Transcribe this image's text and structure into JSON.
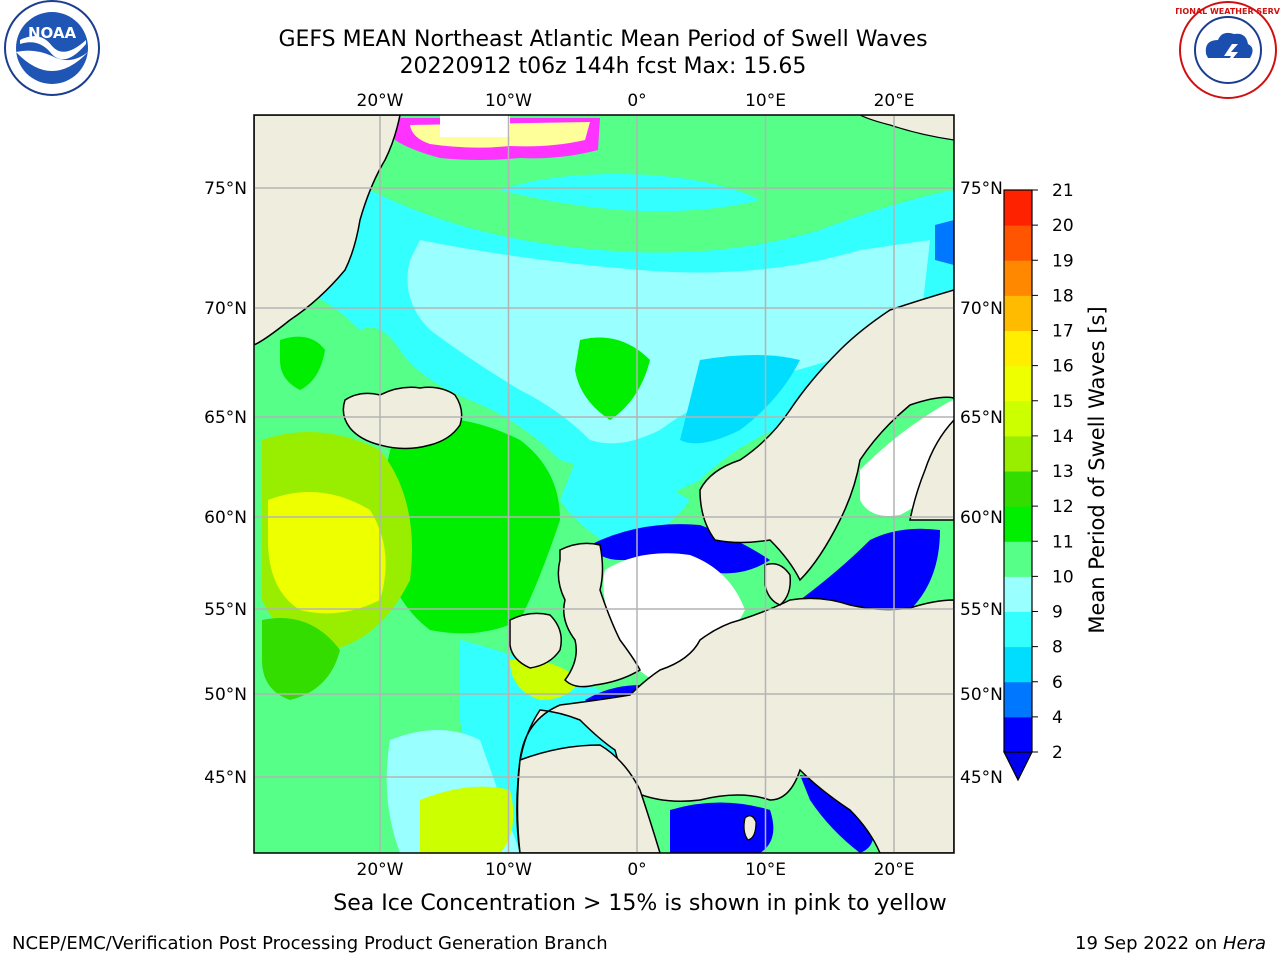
{
  "title": {
    "line1": "GEFS MEAN Northeast Atlantic Mean Period of Swell Waves",
    "line2": "20220912 t06z 144h fcst   Max: 15.65"
  },
  "logos": {
    "left": "NOAA",
    "right": "NATIONAL WEATHER SERVICE"
  },
  "map": {
    "lon_labels": [
      "20°W",
      "10°W",
      "0°",
      "10°E",
      "20°E"
    ],
    "lon_values": [
      -20,
      -10,
      0,
      10,
      20
    ],
    "lat_labels": [
      "75°N",
      "70°N",
      "65°N",
      "60°N",
      "55°N",
      "50°N",
      "45°N"
    ],
    "lat_values": [
      75,
      70,
      65,
      60,
      55,
      50,
      45
    ],
    "land_color": "#efedde",
    "no_data_color": "#ffffff",
    "ice_colors": [
      "#ff00ff",
      "#ff66ff",
      "#ffff99"
    ]
  },
  "colorbar": {
    "label": "Mean Period of Swell Waves [s]",
    "ticks": [
      "2",
      "4",
      "6",
      "8",
      "9",
      "10",
      "11",
      "12",
      "13",
      "14",
      "15",
      "16",
      "17",
      "18",
      "19",
      "20",
      "21"
    ],
    "colors": [
      "#0000ff",
      "#0077ff",
      "#00ddff",
      "#33ffff",
      "#99ffff",
      "#55ff88",
      "#00ee00",
      "#33dd00",
      "#99ee00",
      "#ccff00",
      "#eeff00",
      "#ffee00",
      "#ffbb00",
      "#ff8800",
      "#ff5500",
      "#ff2200"
    ],
    "extend_color": "#0000ee"
  },
  "footnote": "Sea Ice Concentration > 15% is shown in pink to yellow",
  "footer": {
    "left": "NCEP/EMC/Verification Post Processing Product Generation Branch",
    "date": "19 Sep 2022 on ",
    "host": "Hera"
  }
}
